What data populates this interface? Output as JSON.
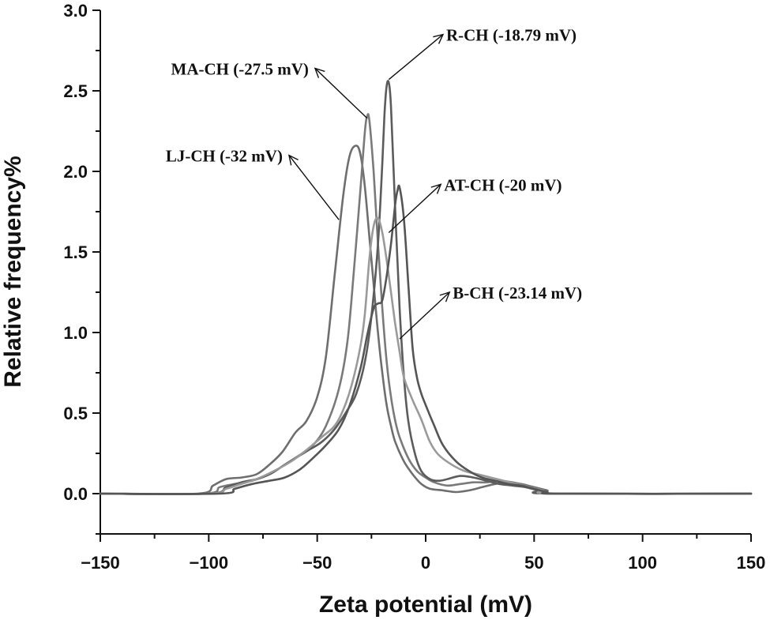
{
  "chart_data": {
    "type": "line",
    "xlabel": "Zeta potential (mV)",
    "ylabel": "Relative frequency%",
    "xlim": [
      -150,
      150
    ],
    "ylim": [
      -0.25,
      3.0
    ],
    "x_ticks": [
      -150,
      -100,
      -50,
      0,
      50,
      100,
      150
    ],
    "x_tick_labels": [
      "−150",
      "−100",
      "−50",
      "0",
      "50",
      "100",
      "150"
    ],
    "y_ticks": [
      0.0,
      0.5,
      1.0,
      1.5,
      2.0,
      2.5,
      3.0
    ],
    "y_tick_labels": [
      "0.0",
      "0.5",
      "1.0",
      "1.5",
      "2.0",
      "2.5",
      "3.0"
    ],
    "grid": false,
    "legend": "none",
    "series": [
      {
        "color": "#6e6e6e",
        "x": [
          -150,
          -105,
          -98,
          -92,
          -85,
          -78,
          -72,
          -66,
          -60,
          -55,
          -50,
          -46,
          -42,
          -38,
          -35,
          -32,
          -30,
          -28,
          -26,
          -24,
          -22,
          -20,
          -18,
          -16,
          -14,
          -10,
          -6,
          -2,
          2,
          8,
          14,
          20,
          26,
          32,
          38,
          44,
          50,
          56,
          62,
          150
        ],
        "y": [
          0.0,
          0.0,
          0.05,
          0.09,
          0.1,
          0.12,
          0.18,
          0.26,
          0.38,
          0.45,
          0.6,
          0.85,
          1.35,
          1.85,
          2.1,
          2.16,
          2.1,
          1.9,
          1.6,
          1.3,
          1.0,
          0.75,
          0.55,
          0.42,
          0.32,
          0.2,
          0.12,
          0.06,
          0.03,
          0.02,
          0.01,
          0.02,
          0.04,
          0.06,
          0.07,
          0.06,
          0.04,
          0.02,
          0.0,
          0.0
        ]
      },
      {
        "color": "#7a7a7a",
        "x": [
          -150,
          -102,
          -95,
          -88,
          -80,
          -72,
          -65,
          -58,
          -52,
          -46,
          -40,
          -36,
          -33,
          -30,
          -28,
          -27,
          -26,
          -24,
          -22,
          -20,
          -18,
          -16,
          -14,
          -12,
          -8,
          -4,
          0,
          4,
          10,
          16,
          22,
          28,
          34,
          40,
          46,
          52,
          58,
          150
        ],
        "y": [
          0.0,
          0.0,
          0.04,
          0.06,
          0.08,
          0.12,
          0.18,
          0.24,
          0.3,
          0.42,
          0.65,
          0.95,
          1.4,
          1.9,
          2.25,
          2.34,
          2.32,
          2.0,
          1.55,
          1.15,
          0.82,
          0.6,
          0.45,
          0.35,
          0.22,
          0.14,
          0.1,
          0.07,
          0.05,
          0.06,
          0.07,
          0.07,
          0.08,
          0.07,
          0.05,
          0.02,
          0.0,
          0.0
        ]
      },
      {
        "color": "#5c5c5c",
        "x": [
          -150,
          -100,
          -92,
          -85,
          -78,
          -72,
          -66,
          -60,
          -54,
          -48,
          -42,
          -36,
          -32,
          -28,
          -25,
          -22,
          -20,
          -19,
          -18,
          -17,
          -16,
          -14,
          -12,
          -10,
          -8,
          -5,
          -2,
          2,
          6,
          10,
          16,
          22,
          28,
          34,
          40,
          46,
          52,
          58,
          150
        ],
        "y": [
          0.0,
          0.0,
          0.04,
          0.07,
          0.09,
          0.12,
          0.17,
          0.22,
          0.27,
          0.32,
          0.4,
          0.52,
          0.62,
          0.82,
          1.1,
          1.55,
          2.05,
          2.35,
          2.53,
          2.55,
          2.4,
          1.75,
          1.15,
          0.72,
          0.45,
          0.25,
          0.14,
          0.09,
          0.08,
          0.09,
          0.11,
          0.1,
          0.08,
          0.06,
          0.05,
          0.04,
          0.02,
          0.0,
          0.0
        ]
      },
      {
        "color": "#9a9a9a",
        "x": [
          -150,
          -100,
          -92,
          -85,
          -78,
          -70,
          -62,
          -55,
          -48,
          -42,
          -38,
          -34,
          -30,
          -28,
          -26,
          -24,
          -22,
          -20,
          -18,
          -16,
          -14,
          -12,
          -10,
          -6,
          -2,
          2,
          6,
          12,
          18,
          24,
          30,
          36,
          42,
          48,
          54,
          60,
          150
        ],
        "y": [
          0.0,
          0.0,
          0.03,
          0.06,
          0.09,
          0.14,
          0.2,
          0.27,
          0.35,
          0.42,
          0.52,
          0.68,
          0.92,
          1.12,
          1.45,
          1.66,
          1.71,
          1.62,
          1.45,
          1.25,
          1.05,
          0.88,
          0.72,
          0.58,
          0.46,
          0.32,
          0.24,
          0.18,
          0.14,
          0.12,
          0.1,
          0.08,
          0.06,
          0.04,
          0.02,
          0.0,
          0.0
        ]
      },
      {
        "color": "#555555",
        "x": [
          -150,
          -95,
          -88,
          -80,
          -72,
          -65,
          -58,
          -52,
          -46,
          -40,
          -35,
          -30,
          -27,
          -24,
          -22,
          -20,
          -18,
          -16,
          -14,
          -13,
          -12,
          -10,
          -8,
          -6,
          -4,
          -2,
          0,
          4,
          8,
          14,
          20,
          26,
          32,
          38,
          44,
          50,
          56,
          62,
          150
        ],
        "y": [
          0.0,
          0.0,
          0.03,
          0.06,
          0.08,
          0.1,
          0.15,
          0.22,
          0.3,
          0.4,
          0.55,
          0.78,
          0.98,
          1.15,
          1.18,
          1.2,
          1.35,
          1.55,
          1.8,
          1.88,
          1.9,
          1.7,
          1.3,
          0.9,
          0.72,
          0.62,
          0.55,
          0.42,
          0.3,
          0.2,
          0.14,
          0.1,
          0.08,
          0.06,
          0.05,
          0.03,
          0.01,
          0.0,
          0.0
        ]
      }
    ],
    "annotations": [
      {
        "text": "R-CH (-18.79 mV)",
        "tip": [
          8,
          2.85
        ],
        "tail": [
          -17,
          2.57
        ]
      },
      {
        "text": "MA-CH (-27.5 mV)",
        "tip": [
          -51,
          2.64
        ],
        "tail": [
          -27,
          2.33
        ]
      },
      {
        "text": "LJ-CH (-32 mV)",
        "tip": [
          -63,
          2.1
        ],
        "tail": [
          -40,
          1.7
        ]
      },
      {
        "text": "AT-CH (-20 mV)",
        "tip": [
          7,
          1.92
        ],
        "tail": [
          -17,
          1.62
        ]
      },
      {
        "text": "B-CH (-23.14 mV)",
        "tip": [
          11,
          1.25
        ],
        "tail": [
          -12,
          0.96
        ]
      }
    ]
  }
}
